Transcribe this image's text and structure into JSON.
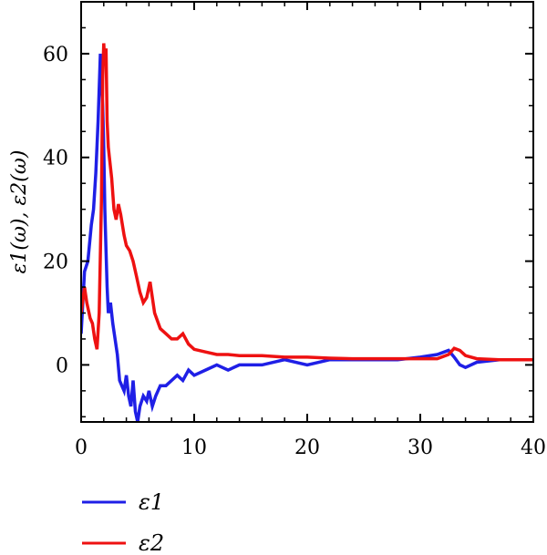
{
  "chart_data": {
    "type": "line",
    "title": "",
    "xlabel": "",
    "ylabel": "ε1(ω), ε2(ω)",
    "xlim": [
      0,
      40
    ],
    "ylim": [
      -11,
      70
    ],
    "xticks": [
      0,
      10,
      20,
      30,
      40
    ],
    "yticks": [
      0,
      20,
      40,
      60
    ],
    "grid": false,
    "legend_position": "bottom-left-below-plot",
    "series": [
      {
        "name": "ε1",
        "color": "#1f1fe6",
        "x": [
          0.0,
          0.3,
          0.6,
          0.9,
          1.1,
          1.3,
          1.5,
          1.7,
          1.9,
          2.0,
          2.1,
          2.2,
          2.3,
          2.4,
          2.6,
          2.8,
          3.0,
          3.2,
          3.4,
          3.6,
          3.8,
          4.0,
          4.2,
          4.4,
          4.6,
          4.8,
          5.0,
          5.2,
          5.5,
          5.8,
          6.0,
          6.3,
          6.6,
          7.0,
          7.5,
          8.0,
          8.5,
          9.0,
          9.5,
          10.0,
          11.0,
          12.0,
          13.0,
          14.0,
          16.0,
          18.0,
          20.0,
          22.0,
          24.0,
          26.0,
          28.0,
          30.0,
          31.5,
          32.5,
          33.0,
          33.5,
          34.0,
          35.0,
          37.0,
          40.0
        ],
        "y": [
          6,
          18,
          20,
          27,
          30,
          37,
          47,
          60,
          50,
          42,
          30,
          22,
          15,
          10,
          12,
          8,
          5,
          2,
          -3,
          -4,
          -5,
          -2,
          -6,
          -8,
          -3,
          -9,
          -11,
          -8,
          -6,
          -7,
          -5,
          -8,
          -6,
          -4,
          -4,
          -3,
          -2,
          -3,
          -1,
          -2,
          -1,
          0,
          -1,
          0,
          0,
          1,
          0,
          1,
          1,
          1,
          1,
          1.5,
          2,
          2.8,
          1.5,
          0,
          -0.5,
          0.5,
          1,
          1
        ]
      },
      {
        "name": "ε2",
        "color": "#ee1111",
        "x": [
          0.0,
          0.3,
          0.5,
          0.8,
          1.0,
          1.2,
          1.4,
          1.6,
          1.8,
          1.9,
          2.0,
          2.1,
          2.2,
          2.3,
          2.4,
          2.5,
          2.7,
          2.9,
          3.1,
          3.3,
          3.5,
          3.8,
          4.0,
          4.3,
          4.6,
          4.9,
          5.2,
          5.5,
          5.8,
          6.1,
          6.5,
          7.0,
          7.5,
          8.0,
          8.5,
          9.0,
          9.5,
          10.0,
          11.0,
          12.0,
          13.0,
          14.0,
          16.0,
          18.0,
          20.0,
          22.0,
          24.0,
          26.0,
          28.0,
          30.0,
          31.5,
          32.5,
          33.0,
          33.5,
          34.0,
          35.0,
          37.0,
          40.0
        ],
        "y": [
          10,
          15,
          12,
          9,
          8,
          5,
          3,
          10,
          32,
          55,
          62,
          58,
          61,
          47,
          42,
          40,
          36,
          30,
          28,
          31,
          29,
          25,
          23,
          22,
          20,
          17,
          14,
          12,
          13,
          16,
          10,
          7,
          6,
          5,
          5,
          6,
          4,
          3,
          2.5,
          2,
          2,
          1.8,
          1.8,
          1.5,
          1.5,
          1.3,
          1.2,
          1.2,
          1.2,
          1.2,
          1.2,
          2,
          3.2,
          2.8,
          1.8,
          1.2,
          1,
          1
        ]
      }
    ]
  }
}
